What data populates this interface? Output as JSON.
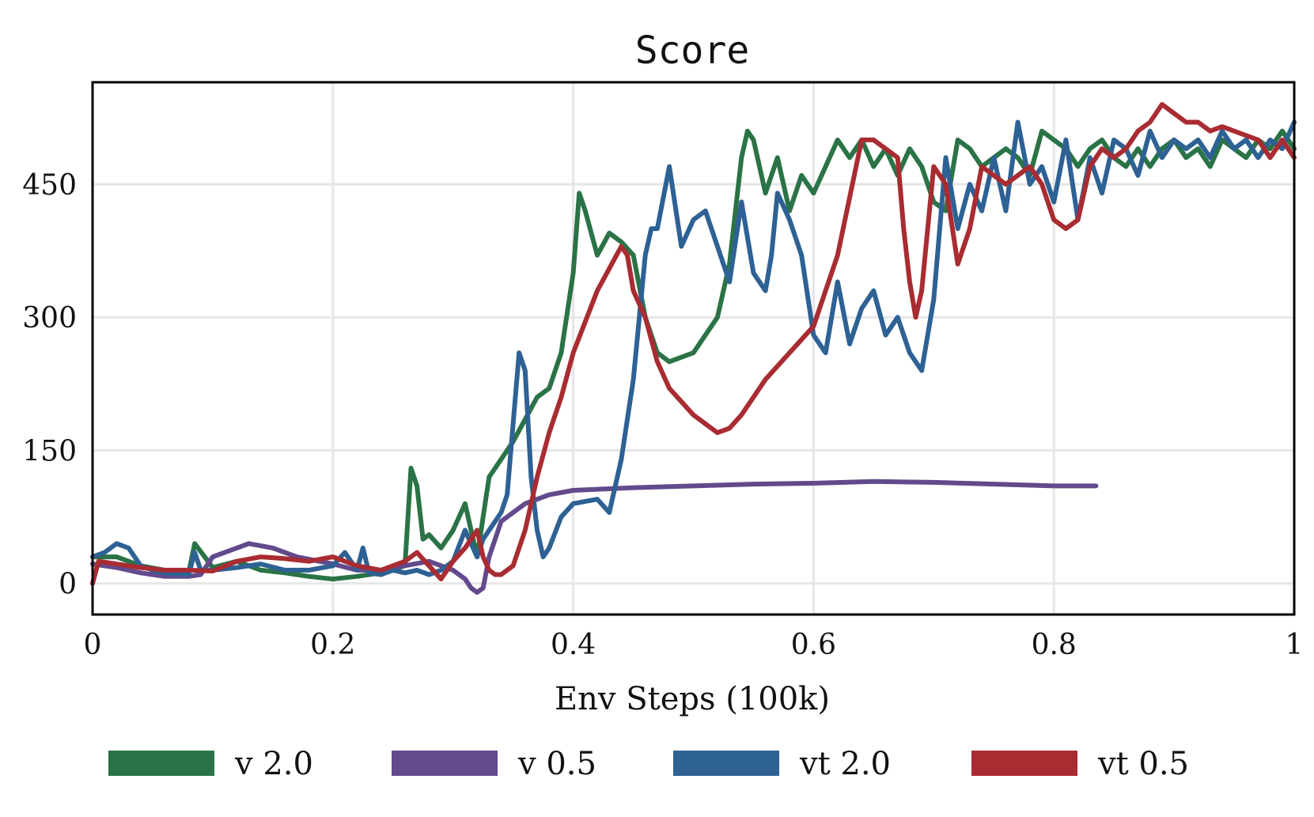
{
  "chart_data": {
    "type": "line",
    "title": "Score",
    "xlabel": "Env Steps (100k)",
    "ylabel": "",
    "xlim": [
      0,
      1
    ],
    "ylim": [
      -35,
      565
    ],
    "xticks": [
      0,
      0.2,
      0.4,
      0.6,
      0.8,
      1
    ],
    "xtick_labels": [
      "0",
      "0.2",
      "0.4",
      "0.6",
      "0.8",
      "1"
    ],
    "yticks": [
      0,
      150,
      300,
      450
    ],
    "ytick_labels": [
      "0",
      "150",
      "300",
      "450"
    ],
    "grid": true,
    "legend_position": "bottom",
    "series": [
      {
        "name": "v 2.0",
        "color": "#2a7346",
        "x": [
          0,
          0.02,
          0.04,
          0.06,
          0.08,
          0.085,
          0.1,
          0.12,
          0.14,
          0.16,
          0.18,
          0.2,
          0.22,
          0.24,
          0.26,
          0.265,
          0.27,
          0.275,
          0.28,
          0.29,
          0.3,
          0.31,
          0.32,
          0.33,
          0.34,
          0.35,
          0.36,
          0.37,
          0.38,
          0.39,
          0.4,
          0.405,
          0.41,
          0.42,
          0.43,
          0.44,
          0.45,
          0.46,
          0.47,
          0.48,
          0.5,
          0.52,
          0.53,
          0.54,
          0.545,
          0.55,
          0.56,
          0.57,
          0.58,
          0.59,
          0.6,
          0.61,
          0.62,
          0.63,
          0.64,
          0.65,
          0.66,
          0.67,
          0.68,
          0.69,
          0.7,
          0.71,
          0.72,
          0.73,
          0.74,
          0.75,
          0.76,
          0.77,
          0.78,
          0.79,
          0.8,
          0.81,
          0.82,
          0.83,
          0.84,
          0.85,
          0.86,
          0.87,
          0.88,
          0.89,
          0.9,
          0.91,
          0.92,
          0.93,
          0.94,
          0.95,
          0.96,
          0.97,
          0.98,
          0.99,
          1
        ],
        "y": [
          30,
          30,
          20,
          15,
          12,
          45,
          18,
          25,
          15,
          12,
          8,
          5,
          8,
          12,
          20,
          130,
          110,
          50,
          55,
          40,
          60,
          90,
          30,
          120,
          140,
          160,
          185,
          210,
          220,
          260,
          350,
          440,
          420,
          370,
          395,
          385,
          370,
          300,
          260,
          250,
          260,
          300,
          360,
          480,
          510,
          500,
          440,
          480,
          420,
          460,
          440,
          470,
          500,
          480,
          500,
          470,
          490,
          460,
          490,
          470,
          430,
          420,
          500,
          490,
          470,
          480,
          490,
          480,
          460,
          510,
          500,
          490,
          470,
          490,
          500,
          480,
          470,
          490,
          470,
          490,
          500,
          480,
          490,
          470,
          500,
          490,
          480,
          500,
          490,
          510,
          490
        ]
      },
      {
        "name": "v 0.5",
        "color": "#624a8c",
        "x": [
          0,
          0.02,
          0.04,
          0.06,
          0.08,
          0.09,
          0.1,
          0.12,
          0.13,
          0.15,
          0.17,
          0.2,
          0.22,
          0.24,
          0.26,
          0.28,
          0.3,
          0.31,
          0.315,
          0.32,
          0.325,
          0.33,
          0.34,
          0.36,
          0.38,
          0.4,
          0.45,
          0.5,
          0.55,
          0.6,
          0.65,
          0.7,
          0.75,
          0.8,
          0.835
        ],
        "y": [
          22,
          18,
          12,
          8,
          8,
          10,
          30,
          40,
          45,
          40,
          30,
          22,
          15,
          15,
          20,
          25,
          15,
          5,
          -5,
          -10,
          -5,
          30,
          70,
          90,
          100,
          105,
          108,
          110,
          112,
          113,
          115,
          114,
          112,
          110,
          110
        ]
      },
      {
        "name": "vt 2.0",
        "color": "#2e6194",
        "x": [
          0,
          0.01,
          0.02,
          0.03,
          0.04,
          0.05,
          0.06,
          0.08,
          0.085,
          0.09,
          0.1,
          0.12,
          0.14,
          0.16,
          0.18,
          0.2,
          0.21,
          0.22,
          0.225,
          0.23,
          0.24,
          0.25,
          0.26,
          0.27,
          0.28,
          0.29,
          0.3,
          0.31,
          0.32,
          0.325,
          0.33,
          0.34,
          0.345,
          0.35,
          0.355,
          0.36,
          0.365,
          0.37,
          0.375,
          0.38,
          0.39,
          0.4,
          0.42,
          0.43,
          0.44,
          0.45,
          0.46,
          0.465,
          0.47,
          0.48,
          0.49,
          0.5,
          0.51,
          0.52,
          0.53,
          0.54,
          0.55,
          0.56,
          0.565,
          0.57,
          0.58,
          0.59,
          0.6,
          0.61,
          0.62,
          0.63,
          0.64,
          0.65,
          0.66,
          0.67,
          0.68,
          0.69,
          0.7,
          0.71,
          0.72,
          0.73,
          0.74,
          0.75,
          0.76,
          0.77,
          0.78,
          0.79,
          0.8,
          0.81,
          0.82,
          0.83,
          0.84,
          0.85,
          0.86,
          0.87,
          0.88,
          0.89,
          0.9,
          0.91,
          0.92,
          0.93,
          0.94,
          0.95,
          0.96,
          0.97,
          0.98,
          0.99,
          1
        ],
        "y": [
          30,
          35,
          45,
          40,
          20,
          15,
          12,
          10,
          35,
          15,
          15,
          18,
          22,
          15,
          15,
          20,
          35,
          15,
          40,
          12,
          10,
          15,
          12,
          15,
          10,
          15,
          25,
          60,
          30,
          50,
          60,
          80,
          100,
          180,
          260,
          240,
          120,
          60,
          30,
          40,
          75,
          90,
          95,
          80,
          140,
          230,
          370,
          400,
          400,
          470,
          380,
          410,
          420,
          380,
          340,
          430,
          350,
          330,
          370,
          440,
          410,
          370,
          280,
          260,
          340,
          270,
          310,
          330,
          280,
          300,
          260,
          240,
          320,
          480,
          400,
          450,
          420,
          480,
          420,
          520,
          450,
          470,
          430,
          500,
          410,
          480,
          440,
          500,
          490,
          460,
          510,
          480,
          500,
          490,
          500,
          480,
          510,
          490,
          500,
          480,
          500,
          490,
          520
        ]
      },
      {
        "name": "vt 0.5",
        "color": "#a82c32",
        "x": [
          0,
          0.005,
          0.02,
          0.04,
          0.06,
          0.08,
          0.1,
          0.12,
          0.14,
          0.16,
          0.18,
          0.2,
          0.22,
          0.24,
          0.25,
          0.26,
          0.27,
          0.28,
          0.29,
          0.3,
          0.31,
          0.32,
          0.325,
          0.33,
          0.335,
          0.34,
          0.35,
          0.36,
          0.37,
          0.38,
          0.39,
          0.4,
          0.42,
          0.44,
          0.445,
          0.45,
          0.46,
          0.47,
          0.48,
          0.5,
          0.52,
          0.53,
          0.54,
          0.56,
          0.58,
          0.6,
          0.62,
          0.64,
          0.65,
          0.66,
          0.67,
          0.675,
          0.68,
          0.685,
          0.69,
          0.7,
          0.71,
          0.72,
          0.73,
          0.74,
          0.75,
          0.76,
          0.77,
          0.78,
          0.79,
          0.8,
          0.81,
          0.82,
          0.83,
          0.84,
          0.85,
          0.86,
          0.87,
          0.88,
          0.89,
          0.9,
          0.91,
          0.92,
          0.93,
          0.94,
          0.95,
          0.96,
          0.97,
          0.98,
          0.99,
          1
        ],
        "y": [
          0,
          25,
          22,
          18,
          15,
          15,
          14,
          25,
          30,
          28,
          25,
          30,
          20,
          15,
          20,
          25,
          35,
          20,
          5,
          25,
          40,
          60,
          30,
          15,
          10,
          10,
          20,
          60,
          120,
          170,
          210,
          260,
          330,
          380,
          370,
          330,
          300,
          250,
          220,
          190,
          170,
          175,
          190,
          230,
          260,
          290,
          370,
          500,
          500,
          490,
          480,
          400,
          340,
          300,
          330,
          470,
          450,
          360,
          400,
          470,
          460,
          450,
          460,
          470,
          450,
          410,
          400,
          410,
          470,
          490,
          480,
          490,
          510,
          520,
          540,
          530,
          520,
          520,
          510,
          515,
          510,
          505,
          500,
          480,
          500,
          480
        ]
      }
    ]
  }
}
